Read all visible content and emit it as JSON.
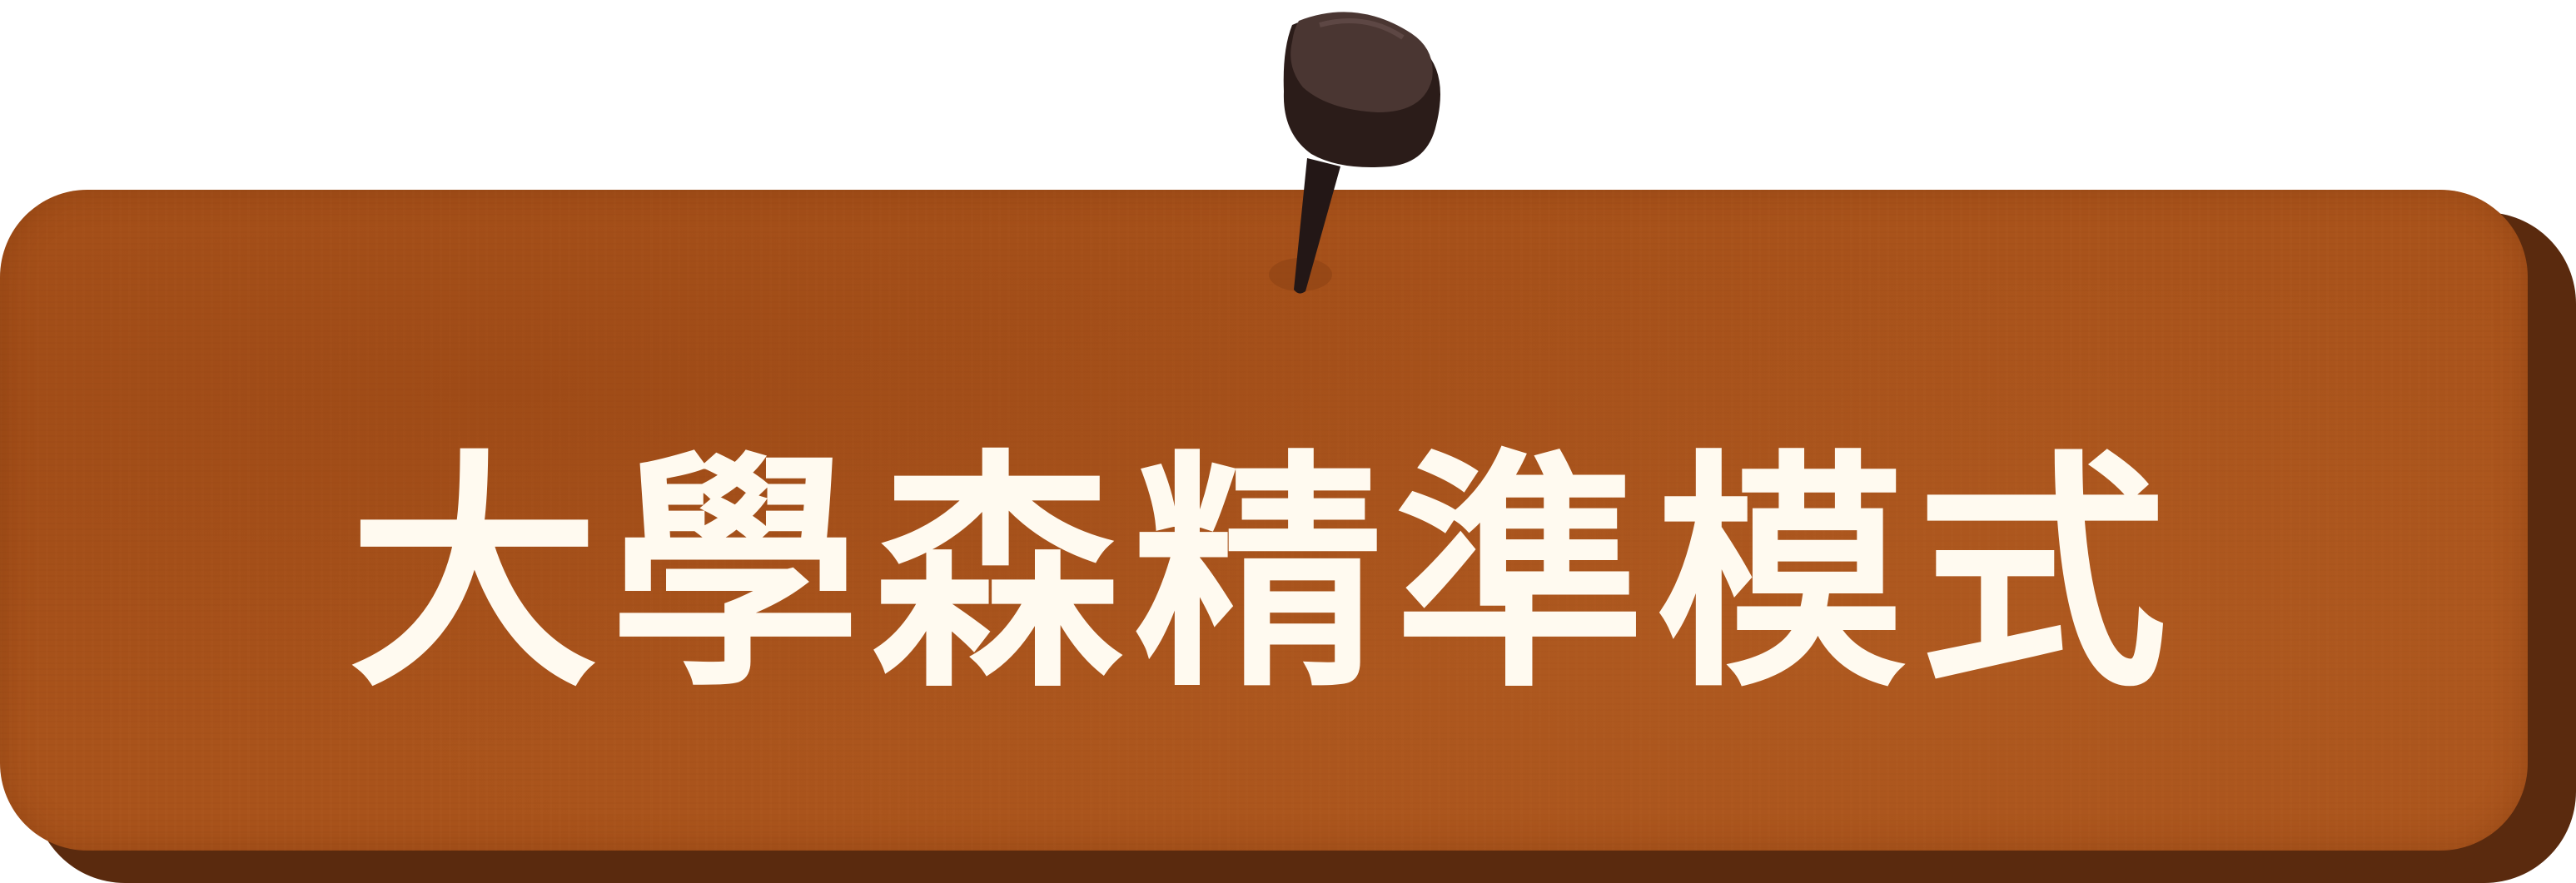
{
  "sign": {
    "title": "大學森精準模式"
  },
  "colors": {
    "board": "#a9531b",
    "board_edge": "#5a2a0e",
    "text": "#fffaf0",
    "pin": "#4a3632"
  },
  "icons": {
    "pin": "push-pin-icon"
  }
}
